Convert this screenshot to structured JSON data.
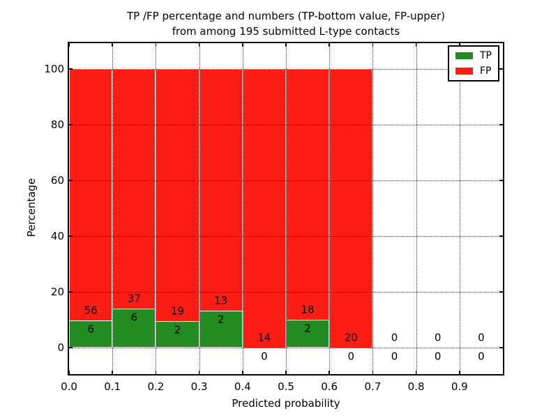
{
  "chart_data": {
    "type": "bar",
    "stacked": true,
    "title_lines": [
      "TP /FP percentage and numbers (TP-bottom value, FP-upper)",
      "from among 195 submitted L-type contacts"
    ],
    "xlabel": "Predicted probability",
    "ylabel": "Percentage",
    "xlim": [
      0.0,
      1.0
    ],
    "ylim": [
      -9.5,
      109.3
    ],
    "grid": "dotted, drawn above bars",
    "x_ticks": [
      {
        "label": "0.0",
        "value": 0.0
      },
      {
        "label": "0.1",
        "value": 0.1
      },
      {
        "label": "0.2",
        "value": 0.2
      },
      {
        "label": "0.3",
        "value": 0.3
      },
      {
        "label": "0.4",
        "value": 0.4
      },
      {
        "label": "0.5",
        "value": 0.5
      },
      {
        "label": "0.6",
        "value": 0.6
      },
      {
        "label": "0.7",
        "value": 0.7
      },
      {
        "label": "0.8",
        "value": 0.8
      },
      {
        "label": "0.9",
        "value": 0.9
      }
    ],
    "y_ticks": [
      {
        "label": "0",
        "value": 0
      },
      {
        "label": "20",
        "value": 20
      },
      {
        "label": "40",
        "value": 40
      },
      {
        "label": "60",
        "value": 60
      },
      {
        "label": "80",
        "value": 80
      },
      {
        "label": "100",
        "value": 100
      }
    ],
    "colors": {
      "tp": "#228b22",
      "fp": "#fc1d15"
    },
    "legend": {
      "position": "upper right",
      "entries": [
        {
          "label": "TP",
          "color": "#228b22"
        },
        {
          "label": "FP",
          "color": "#fc1d15"
        }
      ]
    },
    "bins": [
      {
        "range": "0.0-0.1",
        "x0": 0.0,
        "x1": 0.1,
        "tp": 6,
        "fp": 56
      },
      {
        "range": "0.1-0.2",
        "x0": 0.1,
        "x1": 0.2,
        "tp": 6,
        "fp": 37
      },
      {
        "range": "0.2-0.3",
        "x0": 0.2,
        "x1": 0.3,
        "tp": 2,
        "fp": 19
      },
      {
        "range": "0.3-0.4",
        "x0": 0.3,
        "x1": 0.4,
        "tp": 2,
        "fp": 13
      },
      {
        "range": "0.4-0.5",
        "x0": 0.4,
        "x1": 0.5,
        "tp": 0,
        "fp": 14
      },
      {
        "range": "0.5-0.6",
        "x0": 0.5,
        "x1": 0.6,
        "tp": 2,
        "fp": 18
      },
      {
        "range": "0.6-0.7",
        "x0": 0.6,
        "x1": 0.7,
        "tp": 0,
        "fp": 20
      },
      {
        "range": "0.7-0.8",
        "x0": 0.7,
        "x1": 0.8,
        "tp": 0,
        "fp": 0
      },
      {
        "range": "0.8-0.9",
        "x0": 0.8,
        "x1": 0.9,
        "tp": 0,
        "fp": 0
      },
      {
        "range": "0.9-1.0",
        "x0": 0.9,
        "x1": 1.0,
        "tp": 0,
        "fp": 0
      }
    ],
    "annotation_rule": "FP count printed just above TP/FP boundary, TP count just below it"
  }
}
